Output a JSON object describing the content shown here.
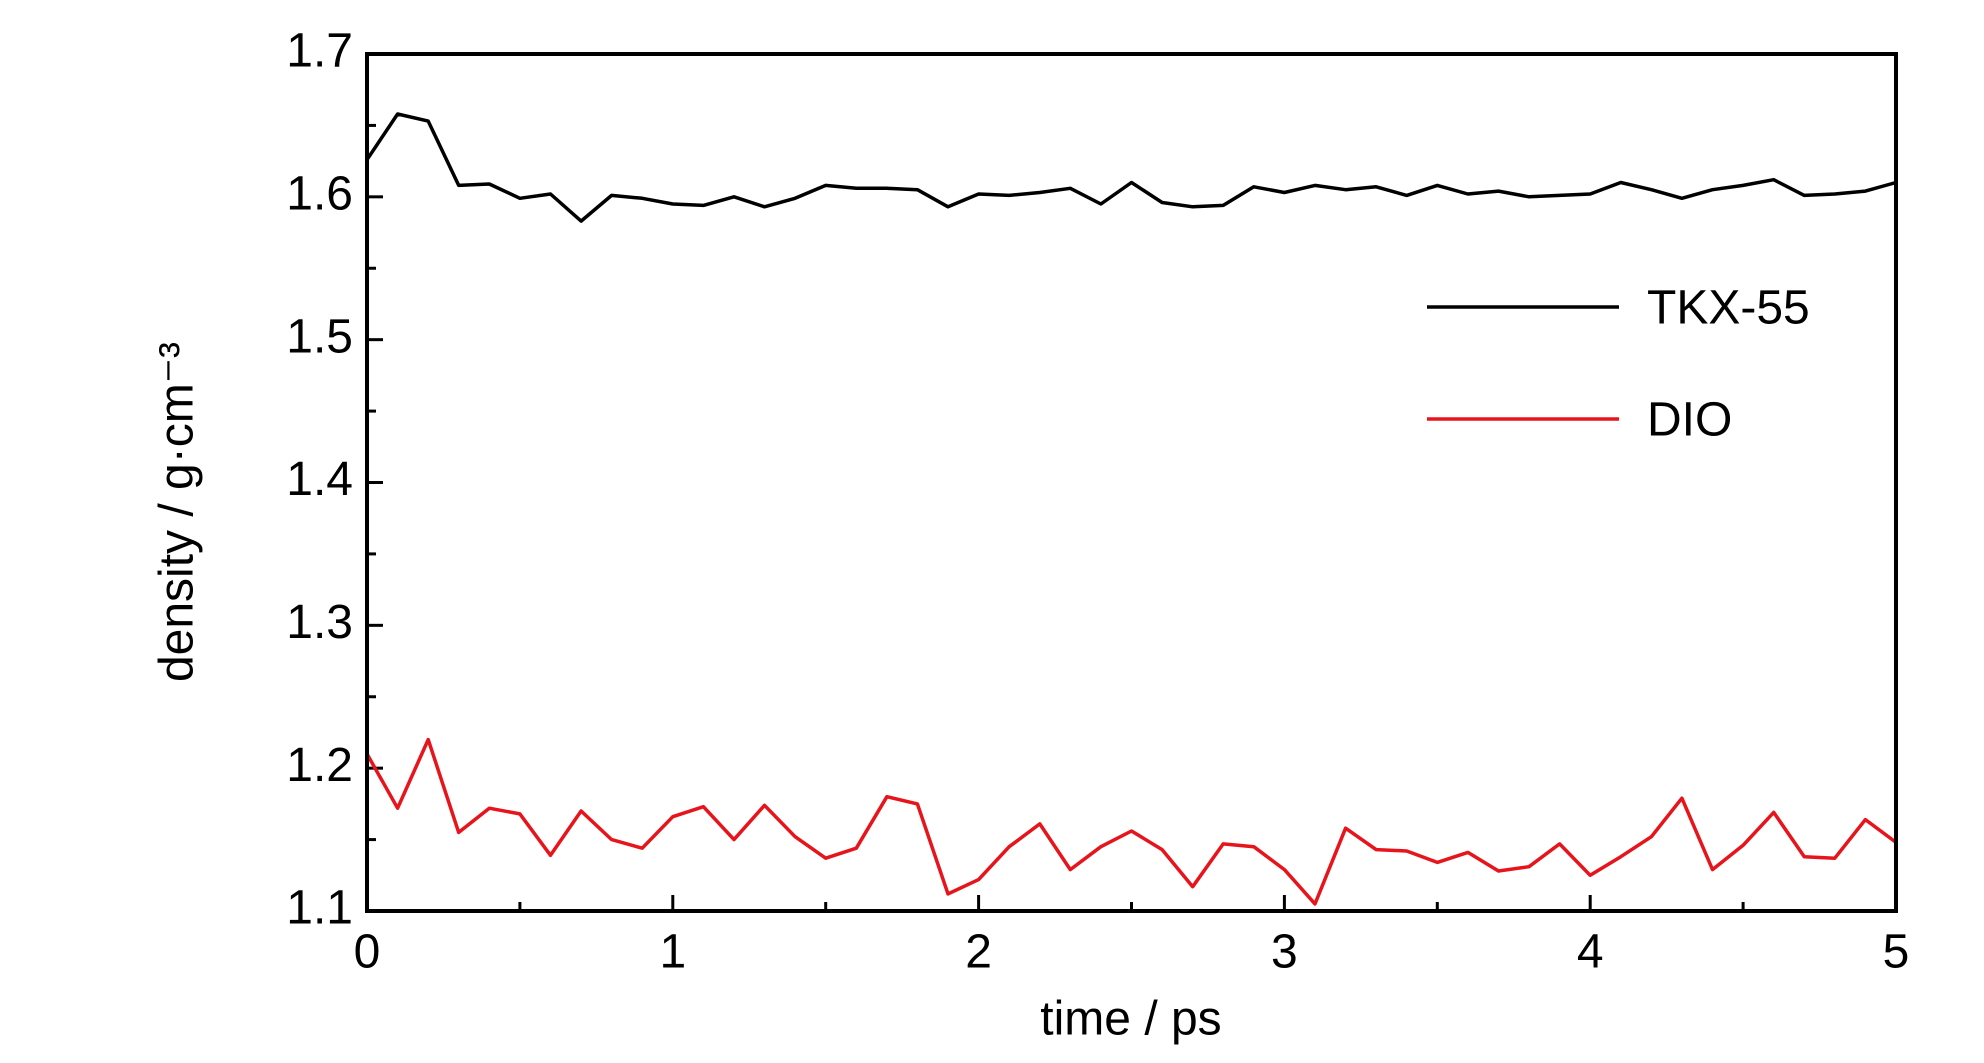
{
  "chart_data": {
    "type": "line",
    "xlabel": "time / ps",
    "ylabel": "density / g·cm⁻³",
    "x": [
      0,
      0.1,
      0.2,
      0.3,
      0.4,
      0.5,
      0.6,
      0.7,
      0.8,
      0.9,
      1,
      1.1,
      1.2,
      1.3,
      1.4,
      1.5,
      1.6,
      1.7,
      1.8,
      1.9,
      2,
      2.1,
      2.2,
      2.3,
      2.4,
      2.5,
      2.6,
      2.7,
      2.8,
      2.9,
      3,
      3.1,
      3.2,
      3.3,
      3.4,
      3.5,
      3.6,
      3.7,
      3.8,
      3.9,
      4,
      4.1,
      4.2,
      4.3,
      4.4,
      4.5,
      4.6,
      4.7,
      4.8,
      4.9,
      5
    ],
    "series": [
      {
        "name": "TKX-55",
        "color": "#000000",
        "values": [
          1.626,
          1.658,
          1.653,
          1.608,
          1.609,
          1.599,
          1.602,
          1.583,
          1.601,
          1.599,
          1.595,
          1.594,
          1.6,
          1.593,
          1.599,
          1.608,
          1.606,
          1.606,
          1.605,
          1.593,
          1.602,
          1.601,
          1.603,
          1.606,
          1.595,
          1.61,
          1.596,
          1.593,
          1.594,
          1.607,
          1.603,
          1.608,
          1.605,
          1.607,
          1.601,
          1.608,
          1.602,
          1.604,
          1.6,
          1.601,
          1.602,
          1.61,
          1.605,
          1.599,
          1.605,
          1.608,
          1.612,
          1.601,
          1.602,
          1.604,
          1.61
        ]
      },
      {
        "name": "DIO",
        "color": "#e8141b",
        "values": [
          1.21,
          1.172,
          1.22,
          1.155,
          1.172,
          1.168,
          1.139,
          1.17,
          1.15,
          1.144,
          1.166,
          1.173,
          1.15,
          1.174,
          1.152,
          1.137,
          1.144,
          1.18,
          1.175,
          1.112,
          1.122,
          1.145,
          1.161,
          1.129,
          1.145,
          1.156,
          1.143,
          1.117,
          1.147,
          1.145,
          1.129,
          1.105,
          1.158,
          1.143,
          1.142,
          1.134,
          1.141,
          1.128,
          1.131,
          1.147,
          1.125,
          1.138,
          1.152,
          1.179,
          1.129,
          1.146,
          1.169,
          1.138,
          1.137,
          1.164,
          1.148
        ]
      }
    ],
    "xlim": [
      0,
      5
    ],
    "xticks": [
      0,
      1,
      2,
      3,
      4,
      5
    ],
    "xminorticks": [
      0.5,
      1.5,
      2.5,
      3.5,
      4.5
    ],
    "ylim": [
      1.1,
      1.7
    ],
    "yticks": [
      1.1,
      1.2,
      1.3,
      1.4,
      1.5,
      1.6,
      1.7
    ],
    "yminorticks": [
      1.15,
      1.25,
      1.35,
      1.45,
      1.55,
      1.65
    ],
    "grid": false,
    "legend": "upper right"
  }
}
